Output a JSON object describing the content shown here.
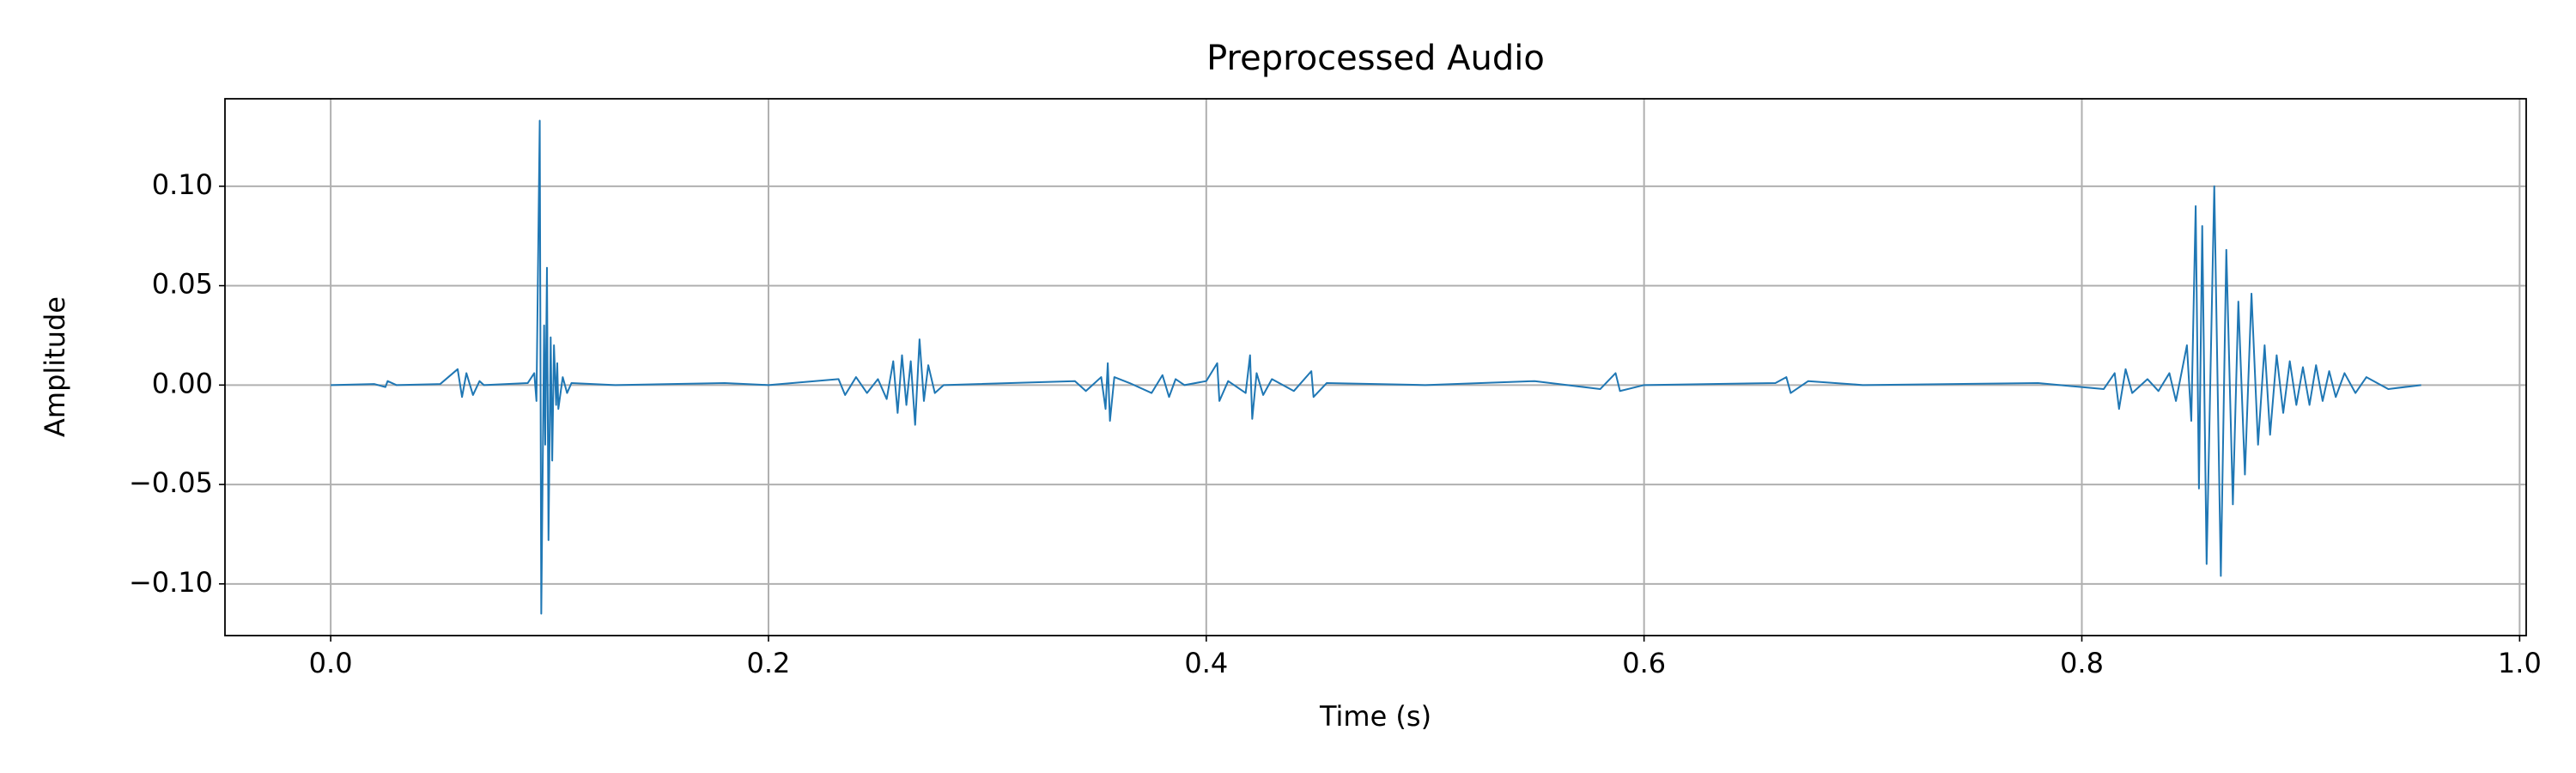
{
  "chart_data": {
    "type": "line",
    "title": "Preprocessed Audio",
    "xlabel": "Time (s)",
    "ylabel": "Amplitude",
    "color": "#1f77b4",
    "grid": true,
    "xlim": [
      -0.0483,
      1.003
    ],
    "ylim": [
      -0.126,
      0.144
    ],
    "xticks": [
      {
        "value": 0,
        "label": "0.0"
      },
      0.2,
      0.4,
      0.6,
      0.8,
      {
        "value": 1,
        "label": "1.0"
      }
    ],
    "yticks": [
      {
        "value": -0.1,
        "label": "−0.10"
      },
      {
        "value": -0.05,
        "label": "−0.05"
      },
      {
        "value": 0,
        "label": "0.00"
      },
      {
        "value": 0.05,
        "label": "0.05"
      },
      {
        "value": 0.1,
        "label": "0.10"
      }
    ],
    "x": [
      0.0,
      0.02,
      0.025,
      0.026,
      0.03,
      0.05,
      0.058,
      0.06,
      0.062,
      0.065,
      0.068,
      0.07,
      0.09,
      0.093,
      0.094,
      0.0955,
      0.0962,
      0.0975,
      0.098,
      0.0988,
      0.0995,
      0.1005,
      0.1012,
      0.102,
      0.103,
      0.1035,
      0.104,
      0.106,
      0.108,
      0.11,
      0.13,
      0.18,
      0.2,
      0.232,
      0.235,
      0.24,
      0.245,
      0.25,
      0.254,
      0.257,
      0.259,
      0.261,
      0.263,
      0.265,
      0.267,
      0.269,
      0.271,
      0.273,
      0.276,
      0.28,
      0.34,
      0.345,
      0.352,
      0.354,
      0.355,
      0.356,
      0.358,
      0.365,
      0.375,
      0.38,
      0.383,
      0.386,
      0.39,
      0.4,
      0.405,
      0.406,
      0.41,
      0.418,
      0.42,
      0.421,
      0.423,
      0.426,
      0.43,
      0.44,
      0.448,
      0.449,
      0.455,
      0.5,
      0.55,
      0.58,
      0.587,
      0.589,
      0.6,
      0.66,
      0.665,
      0.667,
      0.675,
      0.7,
      0.78,
      0.81,
      0.815,
      0.817,
      0.82,
      0.823,
      0.83,
      0.835,
      0.84,
      0.843,
      0.848,
      0.85,
      0.852,
      0.8535,
      0.855,
      0.857,
      0.8605,
      0.8635,
      0.866,
      0.869,
      0.8715,
      0.8745,
      0.8775,
      0.8805,
      0.8835,
      0.886,
      0.889,
      0.892,
      0.895,
      0.898,
      0.901,
      0.904,
      0.907,
      0.91,
      0.913,
      0.916,
      0.92,
      0.925,
      0.93,
      0.94,
      0.955
    ],
    "values": [
      0,
      0.0005,
      -0.001,
      0.002,
      0,
      0.0005,
      0.008,
      -0.006,
      0.006,
      -0.005,
      0.002,
      0,
      0.001,
      0.006,
      -0.008,
      0.133,
      -0.115,
      0.03,
      -0.03,
      0.059,
      -0.078,
      0.024,
      -0.038,
      0.02,
      -0.01,
      0.011,
      -0.012,
      0.004,
      -0.004,
      0.001,
      0,
      0.001,
      0,
      0.003,
      -0.005,
      0.004,
      -0.004,
      0.003,
      -0.007,
      0.012,
      -0.014,
      0.015,
      -0.01,
      0.012,
      -0.02,
      0.023,
      -0.008,
      0.01,
      -0.004,
      0,
      0.002,
      -0.003,
      0.004,
      -0.012,
      0.011,
      -0.018,
      0.004,
      0.001,
      -0.004,
      0.005,
      -0.006,
      0.003,
      0,
      0.002,
      0.011,
      -0.008,
      0.002,
      -0.004,
      0.015,
      -0.017,
      0.006,
      -0.005,
      0.003,
      -0.003,
      0.007,
      -0.006,
      0.001,
      0,
      0.002,
      -0.002,
      0.006,
      -0.003,
      0,
      0.001,
      0.004,
      -0.004,
      0.002,
      0,
      0.001,
      -0.002,
      0.006,
      -0.012,
      0.008,
      -0.004,
      0.003,
      -0.003,
      0.006,
      -0.008,
      0.02,
      -0.018,
      0.09,
      -0.052,
      0.08,
      -0.09,
      0.1,
      -0.096,
      0.068,
      -0.06,
      0.042,
      -0.045,
      0.046,
      -0.03,
      0.02,
      -0.025,
      0.015,
      -0.014,
      0.012,
      -0.01,
      0.009,
      -0.01,
      0.01,
      -0.008,
      0.007,
      -0.006,
      0.006,
      -0.004,
      0.004,
      -0.002,
      0
    ]
  }
}
